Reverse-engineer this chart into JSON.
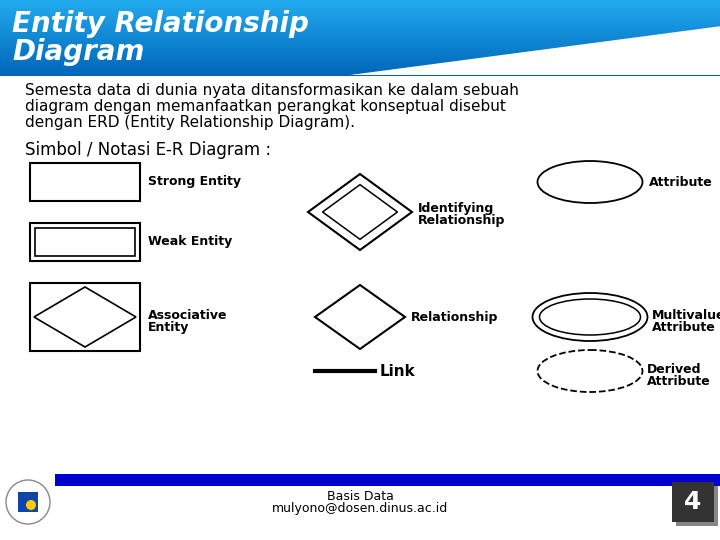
{
  "title_line1": "Entity Relationship",
  "title_line2": "Diagram",
  "title_color": "#FFFFFF",
  "title_fontsize": 20,
  "body_text_line1": "Semesta data di dunia nyata ditansformasikan ke dalam sebuah",
  "body_text_line2": "diagram dengan memanfaatkan perangkat konseptual disebut",
  "body_text_line3": "dengan ERD (Entity Relationship Diagram).",
  "body_fontsize": 11,
  "section_title": "Simbol / Notasi E-R Diagram :",
  "section_fontsize": 12,
  "footer_bar_color": "#0000CC",
  "footer_text1": "Basis Data",
  "footer_text2": "mulyono@dosen.dinus.ac.id",
  "footer_fontsize": 9,
  "page_number": "4",
  "label_fontsize": 9,
  "link_fontsize": 11
}
